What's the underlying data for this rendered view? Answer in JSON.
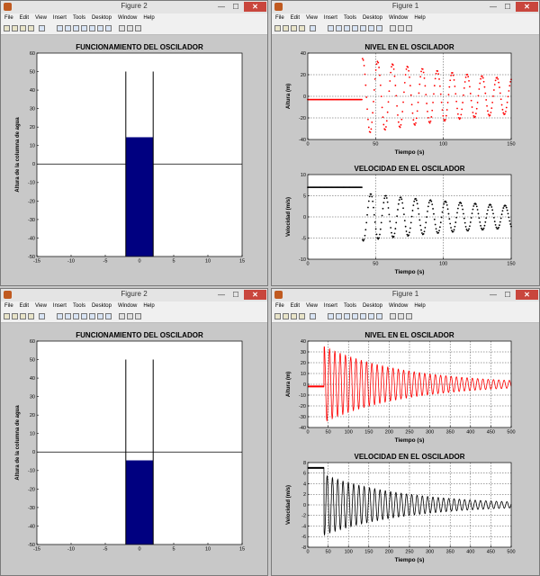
{
  "menu": [
    "File",
    "Edit",
    "View",
    "Insert",
    "Tools",
    "Desktop",
    "Window",
    "Help"
  ],
  "windows": [
    {
      "title": "Figure 2",
      "kind": "tank",
      "chart_data": {
        "type": "bar",
        "title": "FUNCIONAMIENTO DEL OSCILADOR",
        "ylabel": "Altura de la columna de agua",
        "xlabel": "",
        "xlim": [
          -15,
          15
        ],
        "ylim": [
          -50,
          60
        ],
        "xticks": [
          -15,
          -10,
          -5,
          0,
          5,
          10,
          15
        ],
        "yticks": [
          -50,
          -40,
          -30,
          -20,
          -10,
          0,
          10,
          20,
          30,
          40,
          50,
          60
        ],
        "bar_x": [
          -2,
          2
        ],
        "bar_base": -50,
        "bar_top": 14.5,
        "walls_x": [
          -2,
          2
        ],
        "walls_top": 50,
        "reference_line_y": 0,
        "bar_color": "#000080"
      }
    },
    {
      "title": "Figure 1",
      "kind": "series",
      "duration": 150,
      "samples": 260,
      "decay": 0.007,
      "period": 11,
      "step_t": 40,
      "charts": [
        {
          "type": "scatter",
          "title": "NIVEL EN EL OSCILADOR",
          "xlabel": "Tiempo (s)",
          "ylabel": "Altura (m)",
          "xlim": [
            0,
            150
          ],
          "ylim": [
            -40,
            40
          ],
          "xticks": [
            0,
            50,
            100,
            150
          ],
          "yticks": [
            -40,
            -20,
            0,
            20,
            40
          ],
          "color": "#ff0000",
          "pre_value": -3,
          "amplitude": 35,
          "phase": "sin",
          "grid": true
        },
        {
          "type": "scatter",
          "title": "VELOCIDAD EN EL OSCILADOR",
          "xlabel": "Tiempo (s)",
          "ylabel": "Velocidad (m/s)",
          "xlim": [
            0,
            150
          ],
          "ylim": [
            -10,
            10
          ],
          "xticks": [
            0,
            50,
            100,
            150
          ],
          "yticks": [
            -10,
            -5,
            0,
            5,
            10
          ],
          "color": "#000000",
          "pre_value": 7,
          "amplitude": 6,
          "phase": "cos",
          "grid": true
        }
      ]
    },
    {
      "title": "Figure 2",
      "kind": "tank",
      "chart_data": {
        "type": "bar",
        "title": "FUNCIONAMIENTO DEL OSCILADOR",
        "ylabel": "Altura de la columna de agua",
        "xlabel": "",
        "xlim": [
          -15,
          15
        ],
        "ylim": [
          -50,
          60
        ],
        "xticks": [
          -15,
          -10,
          -5,
          0,
          5,
          10,
          15
        ],
        "yticks": [
          -50,
          -40,
          -30,
          -20,
          -10,
          0,
          10,
          20,
          30,
          40,
          50,
          60
        ],
        "bar_x": [
          -2,
          2
        ],
        "bar_base": -50,
        "bar_top": -4.5,
        "walls_x": [
          -2,
          2
        ],
        "walls_top": 50,
        "reference_line_y": 0,
        "bar_color": "#000080"
      }
    },
    {
      "title": "Figure 1",
      "kind": "series",
      "duration": 500,
      "samples": 1400,
      "decay": 0.005,
      "period": 13,
      "step_t": 40,
      "charts": [
        {
          "type": "line",
          "title": "NIVEL EN EL OSCILADOR",
          "xlabel": "Tiempo (s)",
          "ylabel": "Altura (m)",
          "xlim": [
            0,
            500
          ],
          "ylim": [
            -40,
            40
          ],
          "xticks": [
            0,
            50,
            100,
            150,
            200,
            250,
            300,
            350,
            400,
            450,
            500
          ],
          "yticks": [
            -40,
            -30,
            -20,
            -10,
            0,
            10,
            20,
            30,
            40
          ],
          "color": "#ff0000",
          "pre_value": -2,
          "amplitude": 35,
          "phase": "sin",
          "grid": true
        },
        {
          "type": "line",
          "title": "VELOCIDAD EN EL OSCILADOR",
          "xlabel": "Tiempo (s)",
          "ylabel": "Velocidad (m/s)",
          "xlim": [
            0,
            500
          ],
          "ylim": [
            -8,
            8
          ],
          "xticks": [
            0,
            50,
            100,
            150,
            200,
            250,
            300,
            350,
            400,
            450,
            500
          ],
          "yticks": [
            -8,
            -6,
            -4,
            -2,
            0,
            2,
            4,
            6,
            8
          ],
          "color": "#000000",
          "pre_value": 7,
          "amplitude": 6,
          "phase": "cos",
          "grid": true
        }
      ]
    }
  ]
}
